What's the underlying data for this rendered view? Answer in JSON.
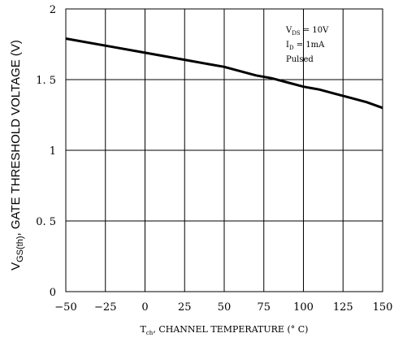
{
  "chart_data": {
    "type": "line",
    "title": "",
    "xlabel": {
      "prefix": "T",
      "sub": "ch",
      "suffix": ", CHANNEL TEMPERATURE (° C)"
    },
    "ylabel": {
      "prefix": "V",
      "sub": "GS(th)",
      "suffix": ", GATE THRESHOLD VOLTAGE (V)"
    },
    "xlim": [
      -50,
      150
    ],
    "ylim": [
      0,
      2
    ],
    "xticks": [
      -50,
      -25,
      0,
      25,
      50,
      75,
      100,
      125,
      150
    ],
    "xtick_labels": [
      "−50",
      "−25",
      "0",
      "25",
      "50",
      "75",
      "100",
      "125",
      "150"
    ],
    "yticks": [
      0,
      0.5,
      1,
      1.5,
      2
    ],
    "ytick_labels": [
      "0",
      "0. 5",
      "1",
      "1. 5",
      "2"
    ],
    "grid": true,
    "annotations": [
      {
        "prefix": "V",
        "sub": "DS",
        "suffix": " = 10V"
      },
      {
        "prefix": "I",
        "sub": "D",
        "suffix": " = 1mA"
      },
      {
        "prefix": "Pulsed",
        "sub": "",
        "suffix": ""
      }
    ],
    "series": [
      {
        "x": [
          -50,
          -25,
          0,
          10,
          20,
          30,
          40,
          50,
          60,
          70,
          80,
          90,
          100,
          110,
          120,
          130,
          140,
          150
        ],
        "values": [
          1.79,
          1.74,
          1.69,
          1.67,
          1.65,
          1.63,
          1.61,
          1.59,
          1.56,
          1.53,
          1.51,
          1.48,
          1.45,
          1.43,
          1.4,
          1.37,
          1.34,
          1.3
        ]
      }
    ]
  }
}
